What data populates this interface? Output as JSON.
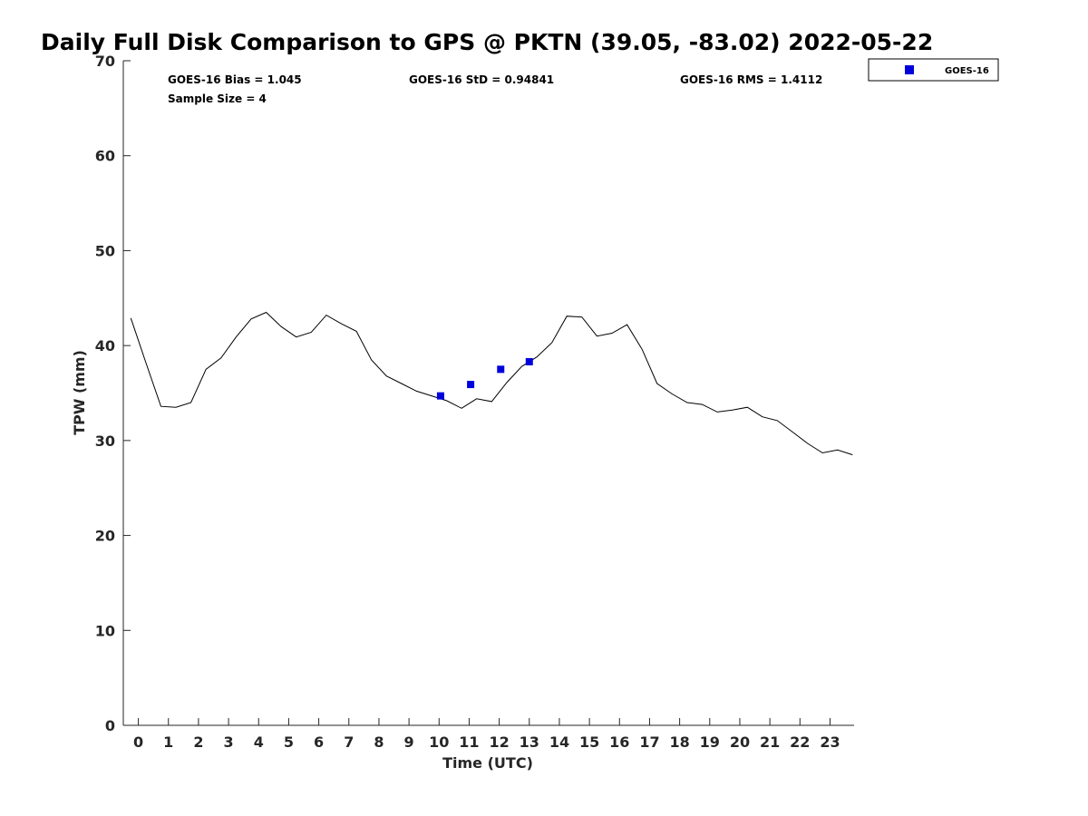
{
  "chart_data": {
    "type": "line",
    "title": "Daily Full Disk Comparison to GPS @ PKTN (39.05, -83.02) 2022-05-22",
    "xlabel": "Time (UTC)",
    "ylabel": "TPW (mm)",
    "xlim": [
      -0.5,
      23.8
    ],
    "ylim": [
      0,
      70
    ],
    "xticks": [
      "0",
      "1",
      "2",
      "3",
      "4",
      "5",
      "6",
      "7",
      "8",
      "9",
      "10",
      "11",
      "12",
      "13",
      "14",
      "15",
      "16",
      "17",
      "18",
      "19",
      "20",
      "21",
      "22",
      "23"
    ],
    "yticks": [
      "0",
      "10",
      "20",
      "30",
      "40",
      "50",
      "60",
      "70"
    ],
    "grid": false,
    "legend_position": "top-right-outside",
    "stats": [
      {
        "label": "GOES-16 Bias = 1.045"
      },
      {
        "label": "GOES-16 StD = 0.94841"
      },
      {
        "label": "GOES-16 RMS = 1.4112"
      },
      {
        "label": "Sample Size = 4"
      }
    ],
    "series": [
      {
        "kind": "line",
        "color": "#000000",
        "x": [
          -0.25,
          0.25,
          0.75,
          1.25,
          1.75,
          2.25,
          2.75,
          3.25,
          3.75,
          4.25,
          4.75,
          5.25,
          5.75,
          6.25,
          6.75,
          7.25,
          7.75,
          8.25,
          8.75,
          9.25,
          9.75,
          10.25,
          10.75,
          11.25,
          11.75,
          12.25,
          12.75,
          13.25,
          13.75,
          14.25,
          14.75,
          15.25,
          15.75,
          16.25,
          16.75,
          17.25,
          17.75,
          18.25,
          18.75,
          19.25,
          19.75,
          20.25,
          20.75,
          21.25,
          21.75,
          22.25,
          22.75,
          23.25,
          23.75
        ],
        "values": [
          42.9,
          38.2,
          33.6,
          33.5,
          34.0,
          37.5,
          38.7,
          40.9,
          42.8,
          43.5,
          42.0,
          40.9,
          41.4,
          43.2,
          42.3,
          41.5,
          38.5,
          36.8,
          36.0,
          35.2,
          34.7,
          34.2,
          33.4,
          34.4,
          34.1,
          36.1,
          37.8,
          38.8,
          40.3,
          43.1,
          43.0,
          41.0,
          41.3,
          42.2,
          39.6,
          36.0,
          34.9,
          34.0,
          33.8,
          33.0,
          33.2,
          33.5,
          32.5,
          32.1,
          30.9,
          29.7,
          28.7,
          29.0,
          28.5
        ]
      },
      {
        "name": "GOES-16",
        "kind": "scatter",
        "marker": "square",
        "color": "#0000dd",
        "x": [
          10.05,
          11.05,
          12.05,
          13.0
        ],
        "values": [
          34.7,
          35.9,
          37.5,
          38.3
        ]
      }
    ]
  }
}
